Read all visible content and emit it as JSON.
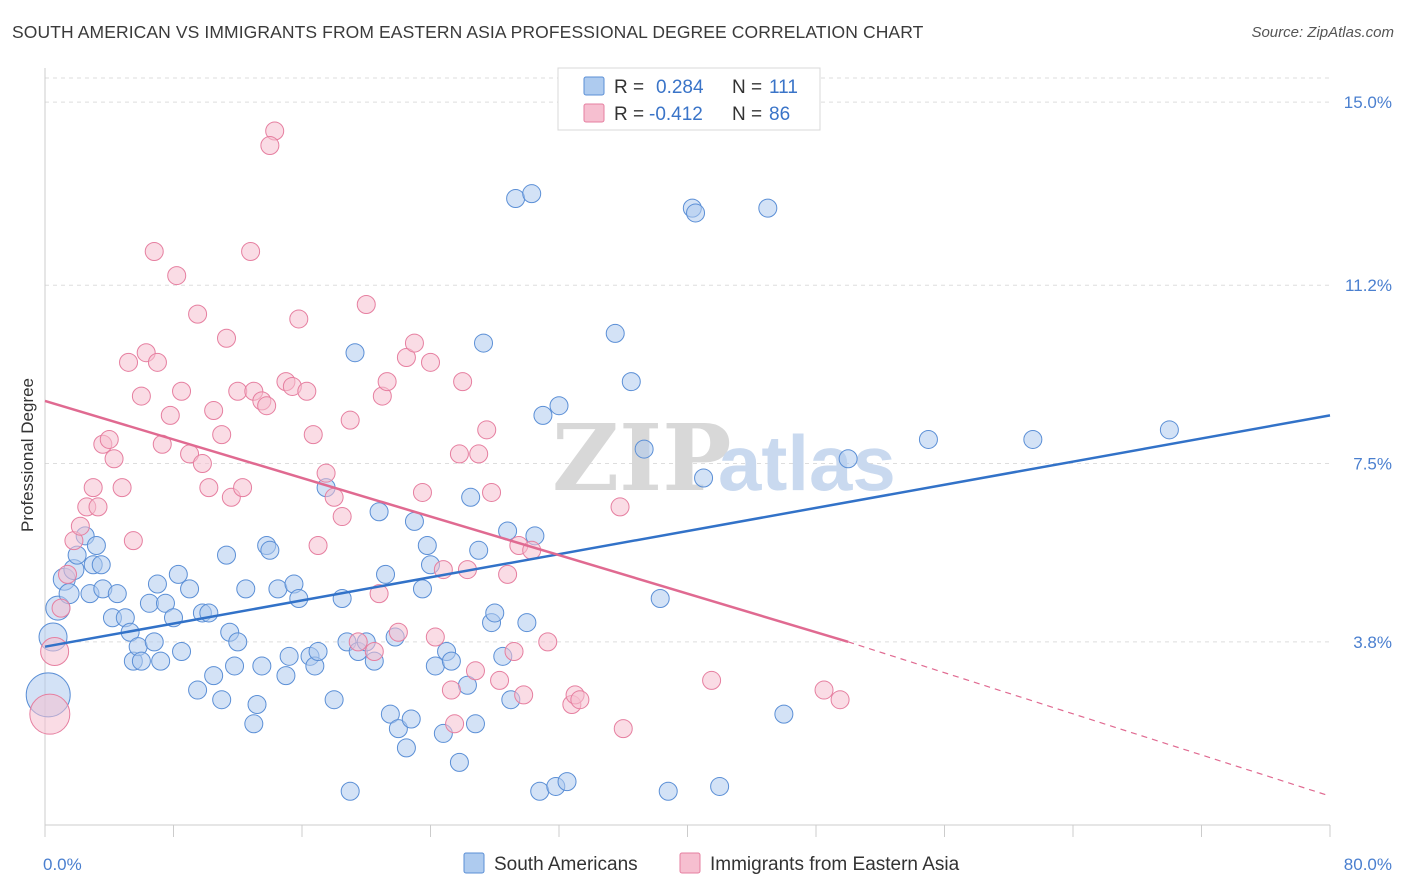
{
  "header": {
    "title": "SOUTH AMERICAN VS IMMIGRANTS FROM EASTERN ASIA PROFESSIONAL DEGREE CORRELATION CHART",
    "source": "Source: ZipAtlas.com"
  },
  "watermark": {
    "zip": "ZIP",
    "atlas": "atlas"
  },
  "colors": {
    "blue": "#5b8fd6",
    "blue_fill": "#aecbef",
    "blue_line": "#3272c8",
    "pink": "#e67fa0",
    "pink_fill": "#f6bfd0",
    "pink_line": "#e06a91",
    "label": "#4a7fcf",
    "grid": "#dddddd"
  },
  "legend_top": {
    "rows": [
      {
        "r_label": "R =",
        "r_value": "0.284",
        "n_label": "N =",
        "n_value": "111"
      },
      {
        "r_label": "R =",
        "r_value": "-0.412",
        "n_label": "N =",
        "n_value": "86"
      }
    ]
  },
  "chart_data": {
    "type": "scatter",
    "title": "SOUTH AMERICAN VS IMMIGRANTS FROM EASTERN ASIA PROFESSIONAL DEGREE CORRELATION CHART",
    "ylabel": "Professional Degree",
    "xlim": [
      0,
      80
    ],
    "ylim": [
      0,
      15.5
    ],
    "x_tick_labels": [
      "0.0%",
      "80.0%"
    ],
    "y_ticks": [
      3.8,
      7.5,
      11.2,
      15.0
    ],
    "y_tick_labels": [
      "3.8%",
      "7.5%",
      "11.2%",
      "15.0%"
    ],
    "grid": true,
    "legend_position": "bottom",
    "series": [
      {
        "name": "South Americans",
        "r": 0.284,
        "n": 111,
        "trend": {
          "x": [
            0,
            80
          ],
          "y": [
            3.7,
            8.5
          ]
        },
        "points": [
          [
            0.2,
            2.7
          ],
          [
            0.5,
            3.9
          ],
          [
            0.8,
            4.5
          ],
          [
            1.2,
            5.1
          ],
          [
            1.5,
            4.8
          ],
          [
            1.8,
            5.3
          ],
          [
            2.0,
            5.6
          ],
          [
            2.5,
            6.0
          ],
          [
            2.8,
            4.8
          ],
          [
            3.0,
            5.4
          ],
          [
            3.2,
            5.8
          ],
          [
            3.5,
            5.4
          ],
          [
            3.6,
            4.9
          ],
          [
            4.2,
            4.3
          ],
          [
            4.5,
            4.8
          ],
          [
            5.0,
            4.3
          ],
          [
            5.3,
            4.0
          ],
          [
            5.5,
            3.4
          ],
          [
            5.8,
            3.7
          ],
          [
            6.0,
            3.4
          ],
          [
            6.5,
            4.6
          ],
          [
            6.8,
            3.8
          ],
          [
            7.0,
            5.0
          ],
          [
            7.2,
            3.4
          ],
          [
            7.5,
            4.6
          ],
          [
            8.0,
            4.3
          ],
          [
            8.3,
            5.2
          ],
          [
            8.5,
            3.6
          ],
          [
            9.0,
            4.9
          ],
          [
            9.5,
            2.8
          ],
          [
            9.8,
            4.4
          ],
          [
            10.2,
            4.4
          ],
          [
            10.5,
            3.1
          ],
          [
            11.0,
            2.6
          ],
          [
            11.3,
            5.6
          ],
          [
            11.5,
            4.0
          ],
          [
            11.8,
            3.3
          ],
          [
            12.0,
            3.8
          ],
          [
            12.5,
            4.9
          ],
          [
            13.0,
            2.1
          ],
          [
            13.2,
            2.5
          ],
          [
            13.5,
            3.3
          ],
          [
            13.8,
            5.8
          ],
          [
            14.0,
            5.7
          ],
          [
            14.5,
            4.9
          ],
          [
            15.0,
            3.1
          ],
          [
            15.2,
            3.5
          ],
          [
            15.5,
            5.0
          ],
          [
            15.8,
            4.7
          ],
          [
            16.5,
            3.5
          ],
          [
            16.8,
            3.3
          ],
          [
            17.0,
            3.6
          ],
          [
            17.5,
            7.0
          ],
          [
            18.0,
            2.6
          ],
          [
            18.5,
            4.7
          ],
          [
            18.8,
            3.8
          ],
          [
            19.0,
            0.7
          ],
          [
            19.3,
            9.8
          ],
          [
            19.5,
            3.6
          ],
          [
            20.0,
            3.8
          ],
          [
            20.5,
            3.4
          ],
          [
            20.8,
            6.5
          ],
          [
            21.2,
            5.2
          ],
          [
            21.5,
            2.3
          ],
          [
            21.8,
            3.9
          ],
          [
            22.0,
            2.0
          ],
          [
            22.5,
            1.6
          ],
          [
            22.8,
            2.2
          ],
          [
            23.0,
            6.3
          ],
          [
            23.5,
            4.9
          ],
          [
            23.8,
            5.8
          ],
          [
            24.0,
            5.4
          ],
          [
            24.3,
            3.3
          ],
          [
            24.8,
            1.9
          ],
          [
            25.0,
            3.6
          ],
          [
            25.3,
            3.4
          ],
          [
            25.8,
            1.3
          ],
          [
            26.3,
            2.9
          ],
          [
            26.5,
            6.8
          ],
          [
            26.8,
            2.1
          ],
          [
            27.0,
            5.7
          ],
          [
            27.3,
            10.0
          ],
          [
            27.8,
            4.2
          ],
          [
            28.0,
            4.4
          ],
          [
            28.5,
            3.5
          ],
          [
            28.8,
            6.1
          ],
          [
            29.0,
            2.6
          ],
          [
            29.3,
            13.0
          ],
          [
            30.0,
            4.2
          ],
          [
            30.3,
            13.1
          ],
          [
            30.5,
            6.0
          ],
          [
            30.8,
            0.7
          ],
          [
            31.0,
            8.5
          ],
          [
            31.8,
            0.8
          ],
          [
            32.0,
            8.7
          ],
          [
            32.5,
            0.9
          ],
          [
            35.5,
            10.2
          ],
          [
            36.5,
            9.2
          ],
          [
            37.3,
            7.8
          ],
          [
            38.3,
            4.7
          ],
          [
            38.8,
            0.7
          ],
          [
            40.3,
            12.8
          ],
          [
            40.5,
            12.7
          ],
          [
            41.0,
            7.2
          ],
          [
            42.0,
            0.8
          ],
          [
            45.0,
            12.8
          ],
          [
            46.0,
            2.3
          ],
          [
            61.5,
            8.0
          ],
          [
            50.0,
            7.6
          ],
          [
            55.0,
            8.0
          ],
          [
            70.0,
            8.2
          ]
        ],
        "sizes": [
          22,
          14,
          12,
          11,
          10,
          10,
          9,
          9,
          9,
          9,
          9,
          9,
          9,
          9,
          9,
          9,
          9,
          9,
          9,
          9,
          9,
          9,
          9,
          9,
          9,
          9,
          9,
          9,
          9,
          9,
          9,
          9,
          9,
          9,
          9,
          9,
          9,
          9,
          9,
          9,
          9,
          9,
          9,
          9,
          9,
          9,
          9,
          9,
          9,
          9,
          9,
          9,
          9,
          9,
          9,
          9,
          9,
          9,
          9,
          9,
          9,
          9,
          9,
          9,
          9,
          9,
          9,
          9,
          9,
          9,
          9,
          9,
          9,
          9,
          9,
          9,
          9,
          9,
          9,
          9,
          9,
          9,
          9,
          9,
          9,
          9,
          9,
          9,
          9,
          9,
          9,
          9,
          9,
          9,
          9,
          9,
          9,
          9,
          9,
          9,
          9,
          9,
          9,
          9,
          9,
          9,
          9,
          0,
          0,
          0,
          0
        ]
      },
      {
        "name": "Immigrants from Eastern Asia",
        "r": -0.412,
        "n": 86,
        "trend": {
          "x": [
            0,
            50
          ],
          "y": [
            8.8,
            3.8
          ],
          "dash_x": [
            50,
            80
          ],
          "dash_y": [
            3.8,
            0.6
          ]
        },
        "points": [
          [
            0.3,
            2.3
          ],
          [
            0.6,
            3.6
          ],
          [
            1.0,
            4.5
          ],
          [
            1.4,
            5.2
          ],
          [
            1.8,
            5.9
          ],
          [
            2.2,
            6.2
          ],
          [
            2.6,
            6.6
          ],
          [
            3.0,
            7.0
          ],
          [
            3.3,
            6.6
          ],
          [
            3.6,
            7.9
          ],
          [
            4.0,
            8.0
          ],
          [
            4.3,
            7.6
          ],
          [
            4.8,
            7.0
          ],
          [
            5.2,
            9.6
          ],
          [
            5.5,
            5.9
          ],
          [
            6.0,
            8.9
          ],
          [
            6.3,
            9.8
          ],
          [
            6.8,
            11.9
          ],
          [
            7.0,
            9.6
          ],
          [
            7.3,
            7.9
          ],
          [
            7.8,
            8.5
          ],
          [
            8.2,
            11.4
          ],
          [
            8.5,
            9.0
          ],
          [
            9.0,
            7.7
          ],
          [
            9.5,
            10.6
          ],
          [
            9.8,
            7.5
          ],
          [
            10.2,
            7.0
          ],
          [
            10.5,
            8.6
          ],
          [
            11.0,
            8.1
          ],
          [
            11.3,
            10.1
          ],
          [
            11.6,
            6.8
          ],
          [
            12.0,
            9.0
          ],
          [
            12.3,
            7.0
          ],
          [
            12.8,
            11.9
          ],
          [
            13.0,
            9.0
          ],
          [
            13.5,
            8.8
          ],
          [
            13.8,
            8.7
          ],
          [
            14.3,
            14.4
          ],
          [
            15.0,
            9.2
          ],
          [
            15.4,
            9.1
          ],
          [
            15.8,
            10.5
          ],
          [
            16.3,
            9.0
          ],
          [
            16.7,
            8.1
          ],
          [
            17.0,
            5.8
          ],
          [
            17.5,
            7.3
          ],
          [
            18.0,
            6.8
          ],
          [
            18.5,
            6.4
          ],
          [
            19.0,
            8.4
          ],
          [
            19.5,
            3.8
          ],
          [
            20.0,
            10.8
          ],
          [
            20.5,
            3.6
          ],
          [
            20.8,
            4.8
          ],
          [
            21.0,
            8.9
          ],
          [
            21.3,
            9.2
          ],
          [
            22.0,
            4.0
          ],
          [
            22.5,
            9.7
          ],
          [
            23.0,
            10.0
          ],
          [
            23.5,
            6.9
          ],
          [
            24.0,
            9.6
          ],
          [
            24.3,
            3.9
          ],
          [
            24.8,
            5.3
          ],
          [
            25.3,
            2.8
          ],
          [
            25.5,
            2.1
          ],
          [
            25.8,
            7.7
          ],
          [
            26.0,
            9.2
          ],
          [
            26.3,
            5.3
          ],
          [
            26.8,
            3.2
          ],
          [
            27.0,
            7.7
          ],
          [
            27.5,
            8.2
          ],
          [
            27.8,
            6.9
          ],
          [
            28.3,
            3.0
          ],
          [
            28.8,
            5.2
          ],
          [
            29.2,
            3.6
          ],
          [
            29.5,
            5.8
          ],
          [
            29.8,
            2.7
          ],
          [
            30.3,
            5.7
          ],
          [
            31.3,
            3.8
          ],
          [
            32.8,
            2.5
          ],
          [
            33.0,
            2.7
          ],
          [
            33.3,
            2.6
          ],
          [
            35.8,
            6.6
          ],
          [
            36.0,
            2.0
          ],
          [
            41.5,
            3.0
          ],
          [
            48.5,
            2.8
          ],
          [
            49.5,
            2.6
          ],
          [
            14.0,
            14.1
          ]
        ]
      }
    ]
  },
  "legend_bottom": {
    "items": [
      {
        "label": "South Americans"
      },
      {
        "label": "Immigrants from Eastern Asia"
      }
    ]
  }
}
